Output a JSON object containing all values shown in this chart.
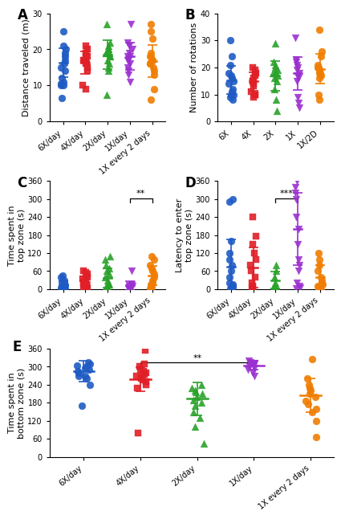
{
  "panel_A": {
    "title": "A",
    "ylabel": "Distance traveled (m)",
    "ylim": [
      0,
      30
    ],
    "yticks": [
      0,
      10,
      20,
      30
    ],
    "groups": [
      "6X/day",
      "4X/day",
      "2X/day",
      "1X/day",
      "1X every 2 days"
    ],
    "colors": [
      "#1f5bc4",
      "#e01f27",
      "#29a229",
      "#9b30d0",
      "#f07d00"
    ],
    "markers": [
      "o",
      "s",
      "^",
      "v",
      "o"
    ],
    "data": [
      [
        6.5,
        10,
        10,
        10.5,
        11,
        12,
        14,
        15,
        16,
        17,
        18,
        19,
        20,
        21,
        25
      ],
      [
        9,
        10,
        14,
        15,
        16,
        16,
        17,
        17,
        17,
        18,
        18,
        19,
        20,
        21
      ],
      [
        7.5,
        14,
        15,
        16,
        17,
        18,
        18,
        19,
        19,
        19,
        20,
        20,
        21,
        22,
        27
      ],
      [
        11,
        13,
        14,
        15,
        16,
        17,
        17,
        18,
        18,
        19,
        20,
        21,
        22,
        27
      ],
      [
        6,
        9,
        13,
        14,
        15,
        16,
        16,
        17,
        17,
        18,
        18,
        19,
        23,
        25,
        27
      ]
    ],
    "mean": [
      16.3,
      16.3,
      18.5,
      18.2,
      16.8
    ],
    "sd": [
      4.0,
      3.2,
      4.0,
      3.8,
      4.5
    ]
  },
  "panel_B": {
    "title": "B",
    "ylabel": "Number of rotations",
    "ylim": [
      0,
      40
    ],
    "yticks": [
      0,
      10,
      20,
      30,
      40
    ],
    "groups": [
      "6X",
      "4X",
      "2X",
      "1X",
      "1X/2D"
    ],
    "colors": [
      "#1f5bc4",
      "#e01f27",
      "#29a229",
      "#9b30d0",
      "#f07d00"
    ],
    "markers": [
      "o",
      "s",
      "^",
      "v",
      "o"
    ],
    "data": [
      [
        8,
        9,
        10,
        10,
        11,
        12,
        14,
        15,
        16,
        17,
        18,
        21,
        24,
        30
      ],
      [
        9,
        10,
        10,
        11,
        13,
        14,
        15,
        15,
        16,
        17,
        18,
        18,
        19,
        20
      ],
      [
        4,
        8,
        12,
        15,
        16,
        17,
        18,
        18,
        19,
        20,
        21,
        22,
        29
      ],
      [
        5,
        7,
        9,
        15,
        16,
        17,
        18,
        19,
        20,
        21,
        22,
        23,
        31
      ],
      [
        8,
        10,
        16,
        17,
        18,
        18,
        19,
        20,
        20,
        21,
        24,
        26,
        34
      ]
    ],
    "mean": [
      15.3,
      14.8,
      17.0,
      17.8,
      19.5
    ],
    "sd": [
      5.2,
      3.5,
      5.5,
      6.0,
      5.5
    ]
  },
  "panel_C": {
    "title": "C",
    "ylabel": "Time spent in\ntop zone (s)",
    "ylim": [
      0,
      360
    ],
    "yticks": [
      0,
      60,
      120,
      180,
      240,
      300,
      360
    ],
    "groups": [
      "6X/day",
      "4X/day",
      "2X/day",
      "1X/day",
      "1X every 2 days"
    ],
    "colors": [
      "#1f5bc4",
      "#e01f27",
      "#29a229",
      "#9b30d0",
      "#f07d00"
    ],
    "markers": [
      "o",
      "s",
      "^",
      "v",
      "o"
    ],
    "data": [
      [
        2,
        3,
        5,
        5,
        7,
        8,
        10,
        12,
        15,
        20,
        25,
        30,
        40,
        45
      ],
      [
        2,
        3,
        5,
        7,
        10,
        12,
        20,
        25,
        30,
        35,
        40,
        50,
        55,
        60
      ],
      [
        2,
        3,
        5,
        7,
        10,
        15,
        20,
        30,
        40,
        50,
        60,
        70,
        80,
        100,
        110
      ],
      [
        1,
        2,
        3,
        5,
        8,
        10,
        12,
        15,
        60
      ],
      [
        2,
        5,
        10,
        15,
        20,
        30,
        40,
        50,
        60,
        70,
        80,
        100,
        110
      ]
    ],
    "mean": [
      15,
      25,
      38,
      12,
      45
    ],
    "sd": [
      12,
      18,
      32,
      15,
      33
    ],
    "sig_bracket": [
      [
        3,
        4
      ],
      "**"
    ]
  },
  "panel_D": {
    "title": "D",
    "ylabel": "Latency to enter\ntop zone (s)",
    "ylim": [
      0,
      360
    ],
    "yticks": [
      0,
      60,
      120,
      180,
      240,
      300,
      360
    ],
    "groups": [
      "6X/day",
      "4X/day",
      "2X/day",
      "1X/day",
      "1X every 2 days"
    ],
    "colors": [
      "#1f5bc4",
      "#e01f27",
      "#29a229",
      "#9b30d0",
      "#f07d00"
    ],
    "markers": [
      "o",
      "s",
      "^",
      "v",
      "o"
    ],
    "data": [
      [
        3,
        5,
        7,
        10,
        15,
        20,
        40,
        60,
        80,
        100,
        120,
        160,
        290,
        300
      ],
      [
        3,
        5,
        10,
        20,
        40,
        60,
        80,
        100,
        120,
        150,
        175,
        240
      ],
      [
        2,
        3,
        5,
        10,
        20,
        40,
        60,
        80
      ],
      [
        2,
        5,
        10,
        20,
        60,
        80,
        100,
        150,
        200,
        240,
        300,
        320,
        340,
        360
      ],
      [
        2,
        3,
        5,
        7,
        10,
        15,
        20,
        30,
        40,
        60,
        80,
        100,
        120
      ]
    ],
    "mean": [
      75,
      72,
      30,
      200,
      40
    ],
    "sd": [
      90,
      68,
      28,
      120,
      40
    ],
    "sig_bracket": [
      [
        2,
        3
      ],
      "***"
    ]
  },
  "panel_E": {
    "title": "E",
    "ylabel": "Time spent in\nbottom zone (s)",
    "ylim": [
      0,
      360
    ],
    "yticks": [
      0,
      60,
      120,
      180,
      240,
      300,
      360
    ],
    "groups": [
      "6X/day",
      "4X/day",
      "2X/day",
      "1X/day",
      "1X every 2 days"
    ],
    "colors": [
      "#1f5bc4",
      "#e01f27",
      "#29a229",
      "#9b30d0",
      "#f07d00"
    ],
    "markers": [
      "o",
      "s",
      "^",
      "v",
      "o"
    ],
    "data": [
      [
        170,
        240,
        260,
        270,
        270,
        280,
        285,
        290,
        295,
        300,
        305,
        310,
        315
      ],
      [
        80,
        230,
        240,
        250,
        255,
        260,
        265,
        270,
        275,
        280,
        285,
        290,
        300,
        310,
        355
      ],
      [
        45,
        100,
        130,
        150,
        170,
        180,
        190,
        200,
        210,
        215,
        220,
        230,
        240
      ],
      [
        270,
        280,
        290,
        295,
        300,
        305,
        308,
        310,
        312,
        315,
        320
      ],
      [
        65,
        120,
        150,
        160,
        175,
        185,
        200,
        210,
        220,
        230,
        240,
        260,
        325
      ]
    ],
    "mean": [
      285,
      258,
      193,
      305,
      205
    ],
    "sd": [
      35,
      40,
      55,
      15,
      55
    ],
    "sig_bracket": [
      [
        1,
        3
      ],
      "**"
    ]
  },
  "label_fontsize": 8,
  "title_fontsize": 12,
  "tick_fontsize": 7,
  "marker_size": 4,
  "capsize": 4,
  "elinewidth": 1.2,
  "background": "#ffffff"
}
